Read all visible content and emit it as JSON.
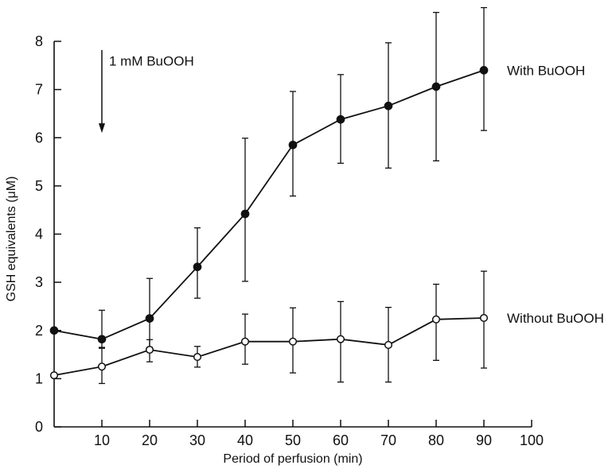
{
  "chart_data": {
    "type": "line",
    "title": "",
    "xlabel": "Period of perfusion (min)",
    "ylabel": "GSH equivalents (μM)",
    "xlim": [
      0,
      100
    ],
    "ylim": [
      0,
      8
    ],
    "xticks": [
      10,
      20,
      30,
      40,
      50,
      60,
      70,
      80,
      90,
      100
    ],
    "yticks": [
      0,
      1,
      2,
      3,
      4,
      5,
      6,
      7,
      8
    ],
    "grid": false,
    "legend": "none; series labelled at right end of each line",
    "annotation": {
      "text": "1 mM BuOOH",
      "x": 10,
      "marker": "downward arrow"
    },
    "series": [
      {
        "name": "With BuOOH",
        "marker": "filled-circle",
        "x": [
          0,
          10,
          20,
          30,
          40,
          50,
          60,
          70,
          80,
          90
        ],
        "y": [
          2.0,
          1.82,
          2.25,
          3.32,
          4.42,
          5.85,
          6.38,
          6.66,
          7.06,
          7.4
        ],
        "err_low": [
          1.98,
          1.65,
          1.65,
          2.67,
          3.02,
          4.79,
          5.47,
          5.37,
          5.52,
          6.15
        ],
        "err_high": [
          2.0,
          2.42,
          3.08,
          4.13,
          5.99,
          6.96,
          7.31,
          7.97,
          8.6,
          8.7
        ]
      },
      {
        "name": "Without BuOOH",
        "marker": "open-circle",
        "x": [
          0,
          10,
          20,
          30,
          40,
          50,
          60,
          70,
          80,
          90
        ],
        "y": [
          1.07,
          1.25,
          1.6,
          1.45,
          1.77,
          1.77,
          1.82,
          1.7,
          2.23,
          2.26
        ],
        "err_low": [
          1.07,
          0.9,
          1.35,
          1.24,
          1.3,
          1.12,
          0.93,
          0.93,
          1.38,
          1.22
        ],
        "err_high": [
          1.07,
          1.63,
          1.81,
          1.67,
          2.34,
          2.47,
          2.6,
          2.48,
          2.96,
          3.23
        ]
      }
    ]
  }
}
